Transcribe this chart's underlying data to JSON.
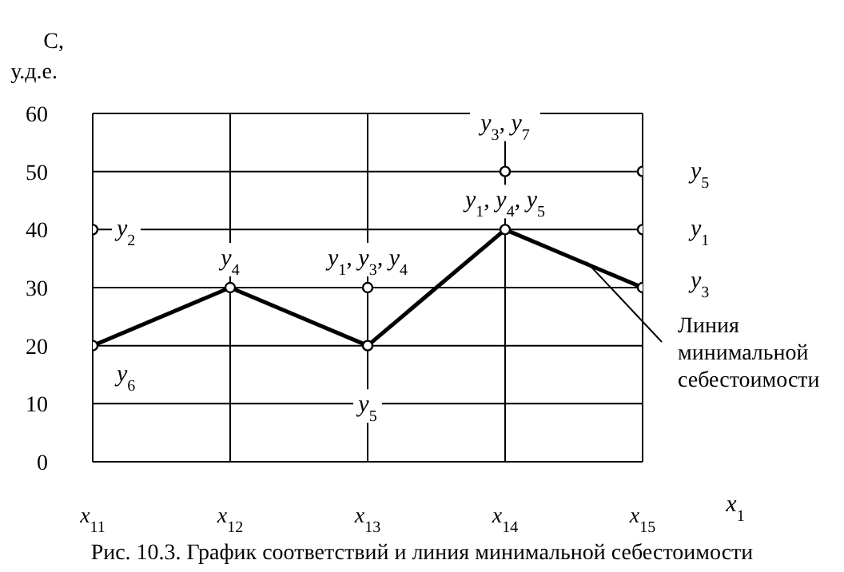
{
  "chart_data": {
    "type": "line",
    "title": "Рис. 10.3. График соответствий и линия минимальной себестоимости",
    "xlabel": "x$_{1}$",
    "ylabel": "С, у.д.е.",
    "categories": [
      "x$_{11}$",
      "x$_{12}$",
      "x$_{13}$",
      "x$_{14}$",
      "x$_{15}$"
    ],
    "series": [
      {
        "color": "#000000",
        "values": [
          20,
          30,
          20,
          40,
          30
        ]
      },
      {
        "type": "scatter",
        "color": "#000000",
        "x": [
          "x$_{11}$",
          "x$_{13}$",
          "x$_{14}$",
          "x$_{15}$",
          "x$_{15}$"
        ],
        "values": [
          40,
          30,
          50,
          50,
          40
        ]
      }
    ],
    "ylim": [
      0,
      60
    ],
    "yticks": [
      0,
      10,
      20,
      30,
      40,
      50,
      60
    ],
    "grid": true,
    "marker": "circle",
    "line_style": "solid",
    "annotations": [
      {
        "text": "y$_{2}$",
        "x": "x$_{11}$",
        "y": 40
      },
      {
        "text": "y$_{4}$",
        "x": "x$_{12}$",
        "y": 30
      },
      {
        "text": "y$_{1}$, y$_{3}$, y$_{4}$",
        "x": "x$_{13}$",
        "y": 30
      },
      {
        "text": "y$_{3}$, y$_{7}$",
        "x": "x$_{14}$",
        "y": 50
      },
      {
        "text": "y$_{1}$, y$_{4}$, y$_{5}$",
        "x": "x$_{14}$",
        "y": 40
      },
      {
        "text": "y$_{5}$",
        "x": "x$_{15}$",
        "y": 50
      },
      {
        "text": "y$_{1}$",
        "x": "x$_{15}$",
        "y": 40
      },
      {
        "text": "y$_{3}$",
        "x": "x$_{15}$",
        "y": 30
      },
      {
        "text": "y$_{6}$",
        "x": "x$_{11}$",
        "y": 20
      },
      {
        "text": "y$_{5}$",
        "x": "x$_{13}$",
        "y": 10
      },
      {
        "text": "Линия минимальной себестоимости",
        "x": "x$_{15}$",
        "y": 30
      }
    ]
  }
}
